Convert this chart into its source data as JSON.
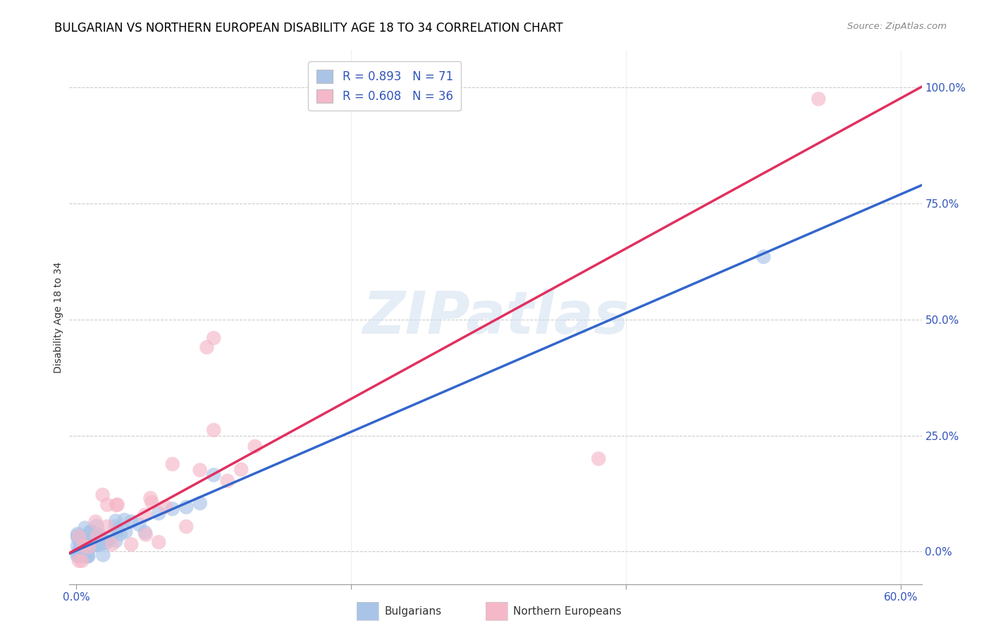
{
  "title": "BULGARIAN VS NORTHERN EUROPEAN DISABILITY AGE 18 TO 34 CORRELATION CHART",
  "source": "Source: ZipAtlas.com",
  "ylabel": "Disability Age 18 to 34",
  "watermark": "ZIPatlas",
  "blue_color": "#aac4e8",
  "pink_color": "#f5b8c8",
  "blue_line_color": "#3366cc",
  "pink_line_color": "#e03060",
  "text_color": "#3355bb",
  "R_blue": 0.893,
  "N_blue": 71,
  "R_pink": 0.608,
  "N_pink": 36,
  "title_fontsize": 12,
  "axis_label_fontsize": 10,
  "tick_fontsize": 11,
  "legend_fontsize": 12,
  "blue_line_slope": 1.28,
  "blue_line_intercept": 0.002,
  "pink_line_slope": 1.62,
  "pink_line_intercept": 0.005
}
